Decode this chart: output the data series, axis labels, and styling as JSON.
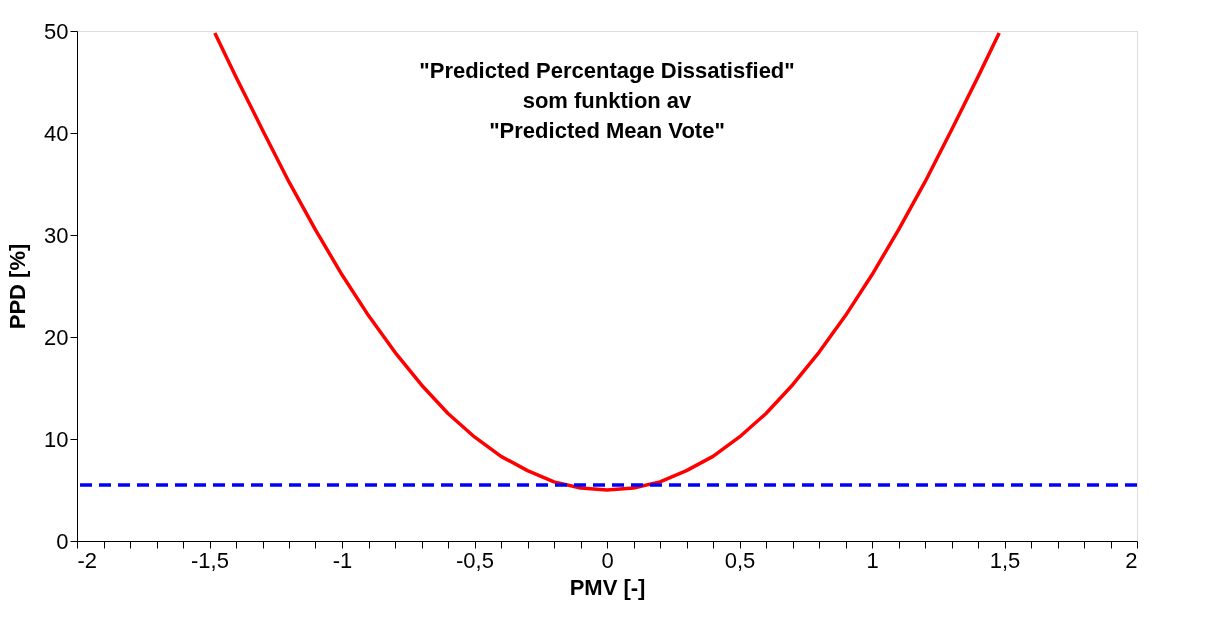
{
  "chart_data": {
    "type": "line",
    "title": "\"Predicted Percentage Dissatisfied\"\nsom funktion av\n\"Predicted Mean Vote\"",
    "xlabel": "PMV [-]",
    "ylabel": "PPD [%]",
    "x": [
      -1.48,
      -1.4,
      -1.3,
      -1.2,
      -1.1,
      -1.0,
      -0.9,
      -0.8,
      -0.7,
      -0.6,
      -0.5,
      -0.4,
      -0.3,
      -0.2,
      -0.1,
      0,
      0.1,
      0.2,
      0.3,
      0.4,
      0.5,
      0.6,
      0.7,
      0.8,
      0.9,
      1.0,
      1.1,
      1.2,
      1.3,
      1.4,
      1.48
    ],
    "series": [
      {
        "color": "#ff0000",
        "values": [
          49.8,
          45.5,
          40.3,
          35.2,
          30.5,
          26.1,
          22.1,
          18.5,
          15.3,
          12.5,
          10.2,
          8.3,
          6.9,
          5.8,
          5.2,
          5.0,
          5.2,
          5.8,
          6.9,
          8.3,
          10.2,
          12.5,
          15.3,
          18.5,
          22.1,
          26.1,
          30.5,
          35.2,
          40.3,
          45.5,
          49.8
        ]
      }
    ],
    "ref_lines": [
      {
        "axis": "y",
        "value": 5.5,
        "color": "#0000ff",
        "line_style": "dashed"
      }
    ],
    "xlim": [
      -2,
      2
    ],
    "ylim": [
      0,
      50
    ],
    "xticks": [
      {
        "value": -2,
        "label": "-2"
      },
      {
        "value": -1.9,
        "label": null
      },
      {
        "value": -1.8,
        "label": null
      },
      {
        "value": -1.7,
        "label": null
      },
      {
        "value": -1.6,
        "label": null
      },
      {
        "value": -1.5,
        "label": "-1,5"
      },
      {
        "value": -1.4,
        "label": null
      },
      {
        "value": -1.3,
        "label": null
      },
      {
        "value": -1.2,
        "label": null
      },
      {
        "value": -1.1,
        "label": null
      },
      {
        "value": -1,
        "label": "-1"
      },
      {
        "value": -0.9,
        "label": null
      },
      {
        "value": -0.8,
        "label": null
      },
      {
        "value": -0.7,
        "label": null
      },
      {
        "value": -0.6,
        "label": null
      },
      {
        "value": -0.5,
        "label": "-0,5"
      },
      {
        "value": -0.4,
        "label": null
      },
      {
        "value": -0.3,
        "label": null
      },
      {
        "value": -0.2,
        "label": null
      },
      {
        "value": -0.1,
        "label": null
      },
      {
        "value": 0,
        "label": "0"
      },
      {
        "value": 0.1,
        "label": null
      },
      {
        "value": 0.2,
        "label": null
      },
      {
        "value": 0.3,
        "label": null
      },
      {
        "value": 0.4,
        "label": null
      },
      {
        "value": 0.5,
        "label": "0,5"
      },
      {
        "value": 0.6,
        "label": null
      },
      {
        "value": 0.7,
        "label": null
      },
      {
        "value": 0.8,
        "label": null
      },
      {
        "value": 0.9,
        "label": null
      },
      {
        "value": 1,
        "label": "1"
      },
      {
        "value": 1.1,
        "label": null
      },
      {
        "value": 1.2,
        "label": null
      },
      {
        "value": 1.3,
        "label": null
      },
      {
        "value": 1.4,
        "label": null
      },
      {
        "value": 1.5,
        "label": "1,5"
      },
      {
        "value": 1.6,
        "label": null
      },
      {
        "value": 1.7,
        "label": null
      },
      {
        "value": 1.8,
        "label": null
      },
      {
        "value": 1.9,
        "label": null
      },
      {
        "value": 2,
        "label": "2"
      }
    ],
    "yticks": [
      0,
      10,
      20,
      30,
      40,
      50
    ],
    "grid": false,
    "marker": "none",
    "line_style": "solid"
  }
}
